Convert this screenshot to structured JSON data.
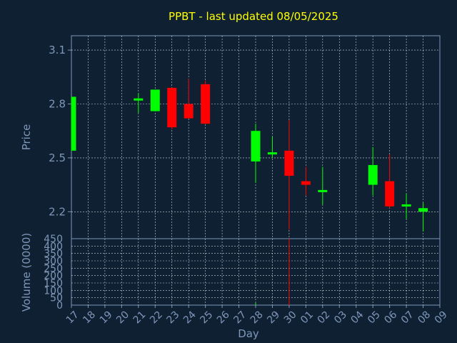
{
  "chart_data": {
    "type": "candlestick",
    "title": "PPBT - last updated 08/05/2025",
    "xlabel": "Day",
    "ylabel": "Price",
    "volume_label": "Volume (0000)",
    "x": [
      "17",
      "18",
      "19",
      "20",
      "21",
      "22",
      "23",
      "24",
      "25",
      "26",
      "27",
      "28",
      "29",
      "30",
      "01",
      "02",
      "03",
      "04",
      "05",
      "06",
      "07",
      "08",
      "09"
    ],
    "price_ylim": [
      2.05,
      3.18
    ],
    "price_ticks": [
      3.1,
      2.8,
      2.5,
      2.2
    ],
    "volume_ylim": [
      0,
      450
    ],
    "volume_ticks": [
      0,
      50,
      100,
      150,
      200,
      250,
      300,
      350,
      400,
      450
    ],
    "grid": true,
    "colors": {
      "up": "#00ff00",
      "down": "#ff0000",
      "background": "#0f2033",
      "grid": "#ffffff",
      "title": "#ffff00",
      "text": "#7e97b8"
    },
    "candles": [
      {
        "day": "17",
        "open": 2.54,
        "high": 2.84,
        "low": 2.54,
        "close": 2.84
      },
      {
        "day": "21",
        "open": 2.82,
        "high": 2.86,
        "low": 2.75,
        "close": 2.83
      },
      {
        "day": "22",
        "open": 2.76,
        "high": 2.88,
        "low": 2.76,
        "close": 2.88
      },
      {
        "day": "23",
        "open": 2.89,
        "high": 2.89,
        "low": 2.66,
        "close": 2.67
      },
      {
        "day": "24",
        "open": 2.8,
        "high": 2.94,
        "low": 2.72,
        "close": 2.72
      },
      {
        "day": "25",
        "open": 2.91,
        "high": 2.93,
        "low": 2.69,
        "close": 2.69
      },
      {
        "day": "28",
        "open": 2.48,
        "high": 2.69,
        "low": 2.36,
        "close": 2.65
      },
      {
        "day": "29",
        "open": 2.52,
        "high": 2.62,
        "low": 2.5,
        "close": 2.53
      },
      {
        "day": "30",
        "open": 2.54,
        "high": 2.71,
        "low": 2.1,
        "close": 2.4
      },
      {
        "day": "01",
        "open": 2.37,
        "high": 2.45,
        "low": 2.29,
        "close": 2.35
      },
      {
        "day": "02",
        "open": 2.31,
        "high": 2.45,
        "low": 2.24,
        "close": 2.32
      },
      {
        "day": "05",
        "open": 2.35,
        "high": 2.56,
        "low": 2.29,
        "close": 2.46
      },
      {
        "day": "06",
        "open": 2.37,
        "high": 2.52,
        "low": 2.22,
        "close": 2.23
      },
      {
        "day": "07",
        "open": 2.23,
        "high": 2.3,
        "low": 2.16,
        "close": 2.24
      },
      {
        "day": "08",
        "open": 2.2,
        "high": 2.25,
        "low": 2.09,
        "close": 2.22
      }
    ],
    "volume": [
      {
        "day": "28",
        "value": 15,
        "color": "#00ff00"
      },
      {
        "day": "30",
        "value": 450,
        "color": "#ff0000"
      }
    ]
  }
}
